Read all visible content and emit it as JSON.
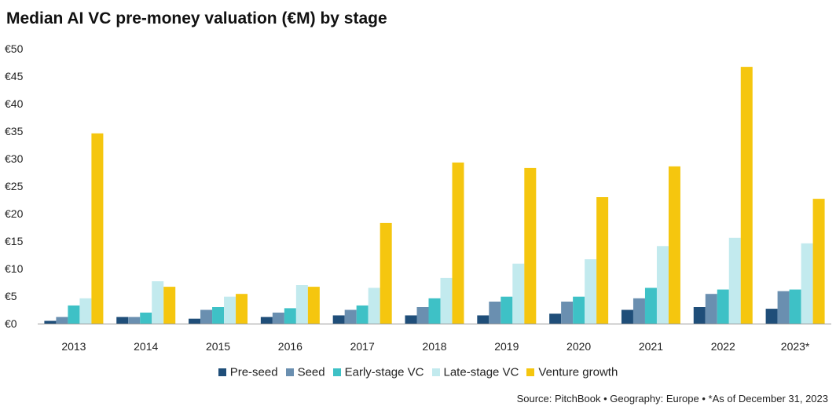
{
  "chart_data": {
    "type": "bar",
    "title": "Median AI VC pre-money valuation (€M) by stage",
    "categories": [
      "2013",
      "2014",
      "2015",
      "2016",
      "2017",
      "2018",
      "2019",
      "2020",
      "2021",
      "2022",
      "2023*"
    ],
    "ylim": [
      0,
      50
    ],
    "yticks": [
      0,
      5,
      10,
      15,
      20,
      25,
      30,
      35,
      40,
      45,
      50
    ],
    "ytick_labels": [
      "€0",
      "€5",
      "€10",
      "€15",
      "€20",
      "€25",
      "€30",
      "€35",
      "€40",
      "€45",
      "€50"
    ],
    "series": [
      {
        "name": "Pre-seed",
        "color": "#1f4e79",
        "values": [
          0.5,
          1.2,
          0.9,
          1.2,
          1.5,
          1.5,
          1.5,
          1.8,
          2.5,
          3.0,
          2.7
        ]
      },
      {
        "name": "Seed",
        "color": "#6a8fb0",
        "values": [
          1.2,
          1.2,
          2.5,
          2.0,
          2.5,
          3.0,
          4.0,
          4.0,
          4.6,
          5.4,
          5.9
        ]
      },
      {
        "name": "Early-stage VC",
        "color": "#3ec1c6",
        "values": [
          3.3,
          2.0,
          3.0,
          2.8,
          3.3,
          4.6,
          4.9,
          4.9,
          6.5,
          6.2,
          6.2
        ]
      },
      {
        "name": "Late-stage VC",
        "color": "#c2eaee",
        "values": [
          4.6,
          7.7,
          4.9,
          7.0,
          6.5,
          8.3,
          10.9,
          11.7,
          14.1,
          15.6,
          14.6
        ]
      },
      {
        "name": "Venture growth",
        "color": "#f5c60f",
        "values": [
          34.6,
          6.7,
          5.4,
          6.7,
          18.3,
          29.3,
          28.3,
          23.0,
          28.6,
          46.7,
          22.7
        ]
      }
    ],
    "legend_position": "bottom",
    "grid": false
  },
  "source": "Source: PitchBook  •  Geography: Europe  •  *As of December 31, 2023"
}
